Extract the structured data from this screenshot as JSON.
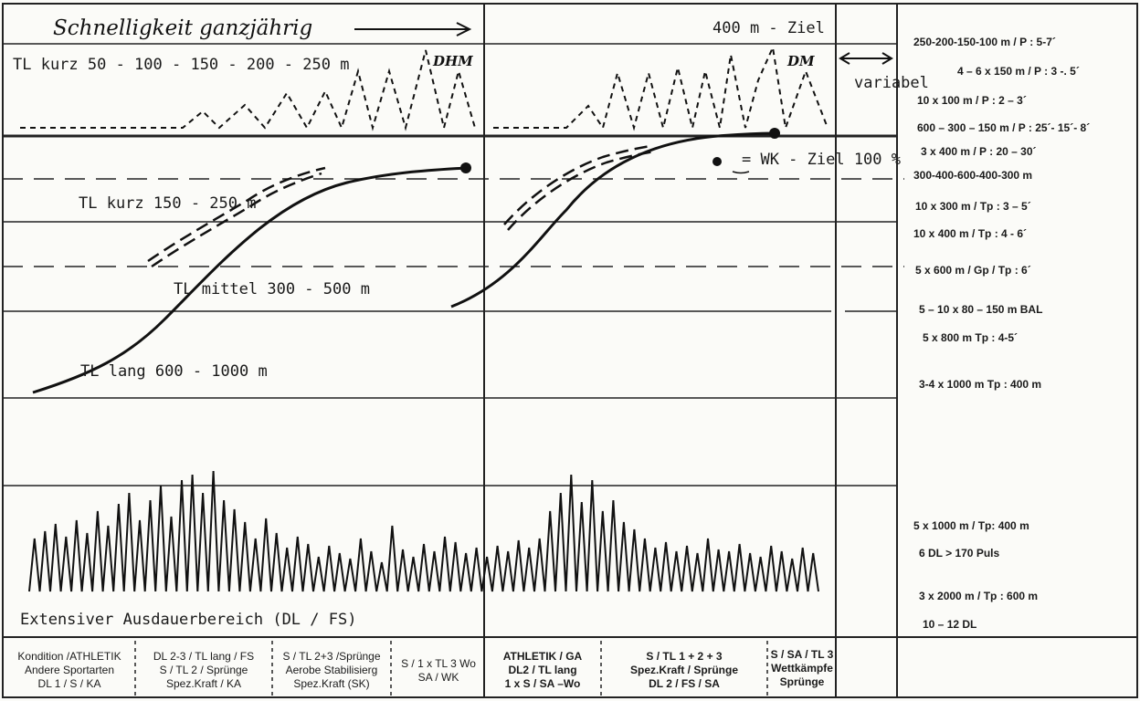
{
  "header": {
    "title": "Schnelligkeit ganzjährig",
    "right_title": "400 m - Ziel",
    "tl_kurz_sprints": "TL kurz   50 - 100 - 150 - 200 - 250 m",
    "dhm": "DHM",
    "dm": "DM",
    "variabel": "variabel"
  },
  "curves": {
    "tl_kurz": "TL kurz 150 - 250 m",
    "tl_mittel": "TL mittel 300 - 500 m",
    "tl_lang": "TL lang 600 - 1000 m",
    "legend": "= WK - Ziel 100 %"
  },
  "bottom_label": "Extensiver  Ausdauerbereich  (DL  /  FS)",
  "right_column": [
    "250-200-150-100 m / P : 5-7´",
    "4 – 6 x 150 m / P : 3 -. 5´",
    "10 x 100 m / P : 2 – 3´",
    "600 – 300 – 150 m / P : 25´- 15´- 8´",
    "3 x 400 m / P : 20 – 30´",
    "300-400-600-400-300 m",
    "10 x 300 m / Tp : 3 – 5´",
    "10 x 400 m / Tp :  4 - 6´",
    "5 x 600 m / Gp / Tp : 6´",
    "5 – 10 x 80 – 150 m BAL",
    "5 x 800 m Tp : 4-5´",
    "3-4 x 1000 m Tp : 400 m",
    "5 x 1000 m / Tp: 400 m",
    "6 DL > 170 Puls",
    "3 x 2000 m / Tp : 600 m",
    "10 – 12 DL"
  ],
  "phases": [
    [
      "Kondition /ATHLETIK",
      "Andere Sportarten",
      "DL 1 / S / KA"
    ],
    [
      "DL 2-3  /  TL lang / FS",
      "S  /  TL 2 / Sprünge",
      "Spez.Kraft / KA"
    ],
    [
      "S / TL 2+3 /Sprünge",
      "Aerobe Stabilisierg",
      "Spez.Kraft (SK)"
    ],
    [
      "S / 1 x TL 3 Wo",
      "SA / WK"
    ],
    [
      "ATHLETIK / GA",
      "DL2 / TL lang",
      "1 x S / SA –Wo"
    ],
    [
      "S / TL 1 + 2 + 3",
      "Spez.Kraft / Sprünge",
      "DL 2 / FS / SA"
    ],
    [
      "S / SA / TL 3",
      "Wettkämpfe",
      "Sprünge"
    ]
  ]
}
